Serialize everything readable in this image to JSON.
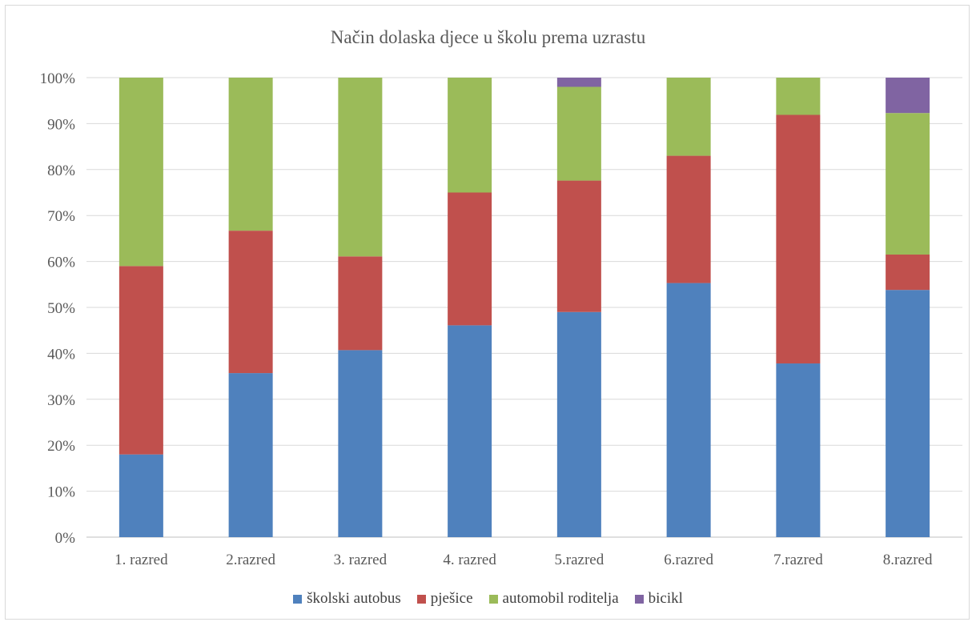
{
  "chart_data": {
    "type": "bar",
    "stacked": "percent",
    "title": "Način dolaska djece u školu prema uzrastu",
    "categories": [
      "1. razred",
      "2.razred",
      "3. razred",
      "4. razred",
      "5.razred",
      "6.razred",
      "7.razred",
      "8.razred"
    ],
    "y_ticks": [
      "0%",
      "10%",
      "20%",
      "30%",
      "40%",
      "50%",
      "60%",
      "70%",
      "80%",
      "90%",
      "100%"
    ],
    "ylim": [
      0,
      100
    ],
    "grid": true,
    "legend_position": "bottom",
    "series": [
      {
        "name": "školski autobus",
        "color": "#4f81bd",
        "values": [
          18,
          35.7,
          40.7,
          46.1,
          49,
          55.3,
          37.8,
          53.8
        ]
      },
      {
        "name": "pješice",
        "color": "#c0504d",
        "values": [
          41,
          31,
          20.4,
          28.9,
          28.6,
          27.7,
          54.1,
          7.7
        ]
      },
      {
        "name": "automobil roditelja",
        "color": "#9bbb59",
        "values": [
          41,
          33.3,
          38.9,
          25,
          20.4,
          17,
          8.1,
          30.8
        ]
      },
      {
        "name": "bicikl",
        "color": "#8064a2",
        "values": [
          0,
          0,
          0,
          0,
          2,
          0,
          0,
          7.7
        ]
      }
    ]
  }
}
